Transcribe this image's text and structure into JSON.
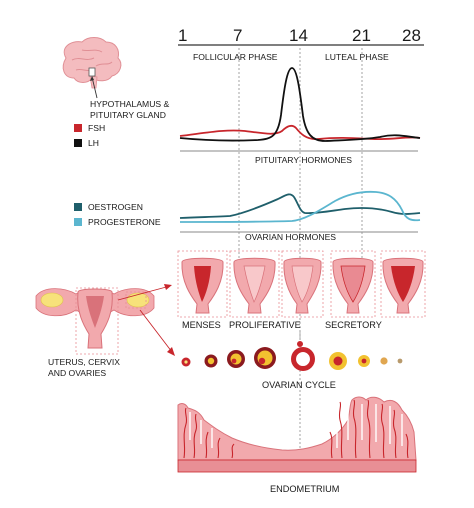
{
  "days": [
    "1",
    "7",
    "14",
    "21",
    "28"
  ],
  "phases": {
    "follicular": "FOLLICULAR PHASE",
    "luteal": "LUTEAL PHASE"
  },
  "brain": {
    "label_line1": "HYPOTHALAMUS &",
    "label_line2": "PITUITARY GLAND"
  },
  "pituitary": {
    "legend": [
      {
        "name": "FSH",
        "color": "#c8262c"
      },
      {
        "name": "LH",
        "color": "#111111"
      }
    ],
    "title": "PITUITARY HORMONES"
  },
  "ovarian_hormones": {
    "legend": [
      {
        "name": "OESTROGEN",
        "color": "#1f5f6b"
      },
      {
        "name": "PROGESTERONE",
        "color": "#5bb6cf"
      }
    ],
    "title": "OVARIAN HORMONES"
  },
  "uterus": {
    "stage_labels": [
      "MENSES",
      "PROLIFERATIVE",
      "SECRETORY"
    ],
    "organ_label_line1": "UTERUS, CERVIX",
    "organ_label_line2": "AND OVARIES"
  },
  "ovarian_cycle": {
    "title": "OVARIAN CYCLE"
  },
  "endometrium": {
    "title": "ENDOMETRIUM"
  },
  "colors": {
    "tissue": "#f2a9ad",
    "tissue_dark": "#d9727a",
    "vessel": "#c8262c",
    "follicle_dark": "#8b1a1f",
    "corpus_luteum": "#f2c230",
    "ovary_fat": "#f7e27a",
    "baseline": "#8a8a8a",
    "dash": "#9a9a9a"
  }
}
